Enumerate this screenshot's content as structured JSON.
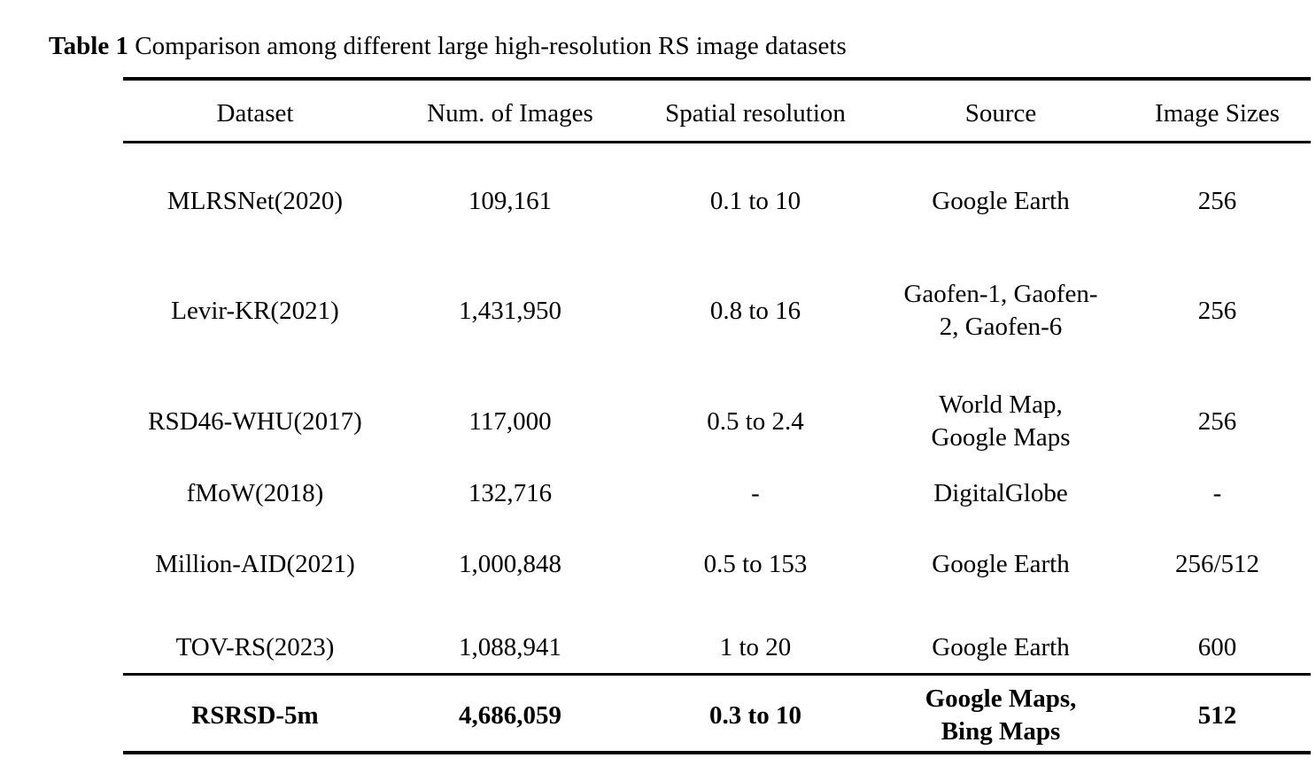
{
  "caption": {
    "label": "Table 1",
    "text": "Comparison among different large high-resolution RS image datasets"
  },
  "table": {
    "headers": [
      "Dataset",
      "Num. of Images",
      "Spatial resolution",
      "Source",
      "Image Sizes"
    ],
    "rows": [
      {
        "dataset": "MLRSNet(2020)",
        "num_images": "109,161",
        "resolution": "0.1 to 10",
        "source": [
          "Google Earth"
        ],
        "image_sizes": "256"
      },
      {
        "dataset": "Levir-KR(2021)",
        "num_images": "1,431,950",
        "resolution": "0.8 to 16",
        "source": [
          "Gaofen-1, Gaofen-",
          "2, Gaofen-6"
        ],
        "image_sizes": "256"
      },
      {
        "dataset": "RSD46-WHU(2017)",
        "num_images": "117,000",
        "resolution": "0.5 to 2.4",
        "source": [
          "World Map,",
          "Google Maps"
        ],
        "image_sizes": "256"
      },
      {
        "dataset": "fMoW(2018)",
        "num_images": "132,716",
        "resolution": "-",
        "source": [
          "DigitalGlobe"
        ],
        "image_sizes": "-"
      },
      {
        "dataset": "Million-AID(2021)",
        "num_images": "1,000,848",
        "resolution": "0.5 to 153",
        "source": [
          "Google Earth"
        ],
        "image_sizes": "256/512"
      },
      {
        "dataset": "TOV-RS(2023)",
        "num_images": "1,088,941",
        "resolution": "1 to 20",
        "source": [
          "Google Earth"
        ],
        "image_sizes": "600"
      }
    ],
    "highlight_row": {
      "dataset": "RSRSD-5m",
      "num_images": "4,686,059",
      "resolution": "0.3 to 10",
      "source": [
        "Google Maps,",
        "Bing Maps"
      ],
      "image_sizes": "512"
    }
  }
}
